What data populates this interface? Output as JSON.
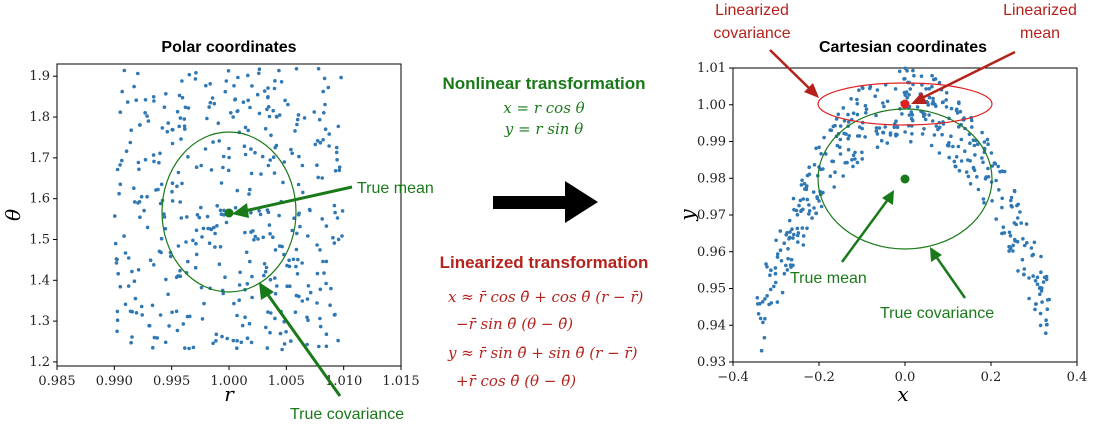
{
  "colors": {
    "points": "#2f78b4",
    "green": "#1a7a1a",
    "red": "#b5221c",
    "red_light": "#e02020",
    "black": "#000000"
  },
  "left_plot": {
    "title": "Polar coordinates",
    "xlabel": "r",
    "ylabel": "θ",
    "xlim": [
      0.985,
      1.015
    ],
    "ylim": [
      1.19,
      1.93
    ],
    "xticks": [
      "0.985",
      "0.990",
      "0.995",
      "1.000",
      "1.005",
      "1.010",
      "1.015"
    ],
    "yticks": [
      "1.2",
      "1.3",
      "1.4",
      "1.5",
      "1.6",
      "1.7",
      "1.8",
      "1.9"
    ],
    "mean_label": "True mean",
    "covariance_label": "True covariance"
  },
  "right_plot": {
    "title": "Cartesian coordinates",
    "xlabel": "x",
    "ylabel": "y",
    "xlim": [
      -0.4,
      0.4
    ],
    "ylim": [
      0.93,
      1.01
    ],
    "xticks": [
      "−0.4",
      "−0.2",
      "0.0",
      "0.2",
      "0.4"
    ],
    "yticks": [
      "0.93",
      "0.94",
      "0.95",
      "0.96",
      "0.97",
      "0.98",
      "0.99",
      "1.00",
      "1.01"
    ],
    "mean_label": "True mean",
    "covariance_label": "True covariance",
    "lin_cov_label_line1": "Linearized",
    "lin_cov_label_line2": "covariance",
    "lin_mean_label_line1": "Linearized",
    "lin_mean_label_line2": "mean"
  },
  "middle": {
    "nonlinear_title": "Nonlinear transformation",
    "nonlinear_eq1": "x = r cos θ",
    "nonlinear_eq2": "y = r sin θ",
    "linearized_title": "Linearized transformation",
    "lin_eq1": "x ≈ r̄ cos θ̄ + cos θ̄ (r − r̄)",
    "lin_eq2": "−r̄ sin θ̄ (θ − θ̄)",
    "lin_eq3": "y ≈ r̄ sin θ̄ + sin θ̄ (r − r̄)",
    "lin_eq4": "+r̄ cos θ̄ (θ − θ̄)"
  },
  "chart_data": {
    "type": "scatter",
    "description_of_distribution": {
      "r_range": [
        0.99,
        1.01
      ],
      "theta_range": [
        1.23,
        1.92
      ]
    },
    "true_mean_polar": {
      "r": 1.0,
      "theta": 1.575
    },
    "true_mean_cartesian": {
      "x": 0.0,
      "y": 0.98
    },
    "linearized_mean_cartesian": {
      "x": 0.0,
      "y": 1.0
    }
  }
}
